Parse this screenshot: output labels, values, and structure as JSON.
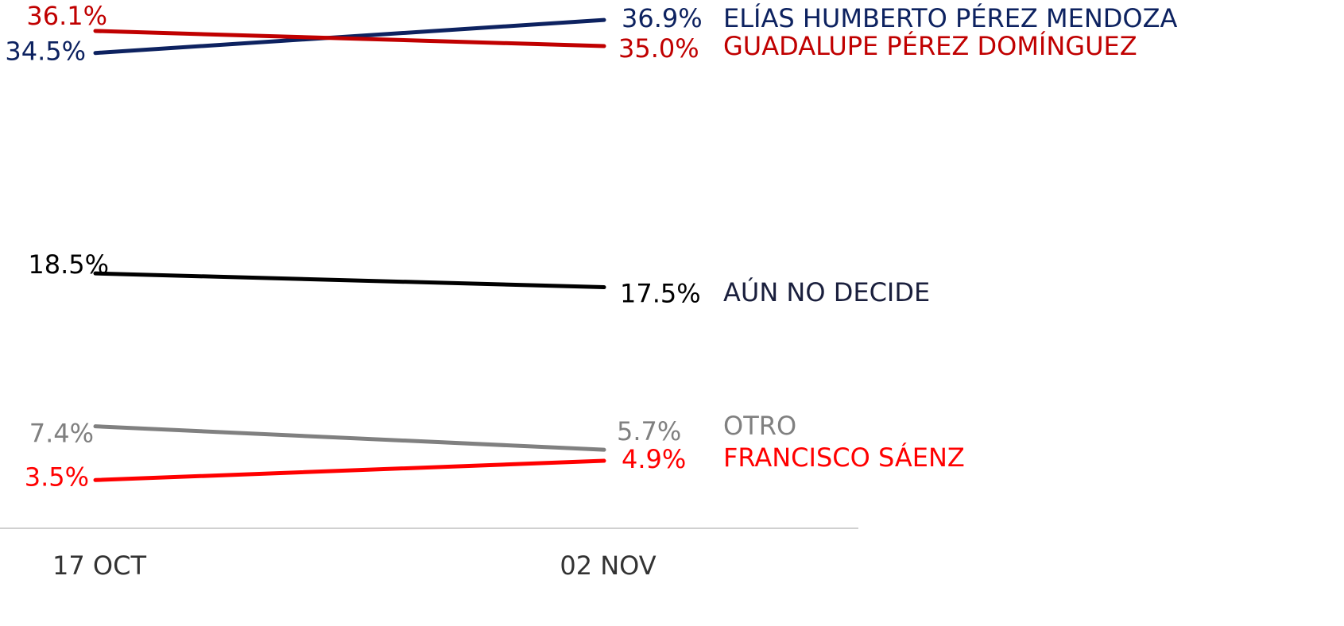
{
  "chart_data": {
    "type": "line",
    "categories": [
      "17 OCT",
      "02 NOV"
    ],
    "ylim": [
      0,
      38
    ],
    "series": [
      {
        "name": "ELÍAS HUMBERTO PÉREZ MENDOZA",
        "color": "#0d2260",
        "values": [
          34.5,
          36.9
        ],
        "value_labels": [
          "34.5%",
          "36.9%"
        ]
      },
      {
        "name": "GUADALUPE PÉREZ DOMÍNGUEZ",
        "color": "#c00000",
        "values": [
          36.1,
          35.0
        ],
        "value_labels": [
          "36.1%",
          "35.0%"
        ]
      },
      {
        "name": "AÚN NO DECIDE",
        "color": "#000000",
        "values": [
          18.5,
          17.5
        ],
        "value_labels": [
          "18.5%",
          "17.5%"
        ]
      },
      {
        "name": "OTRO",
        "color": "#808080",
        "values": [
          7.4,
          5.7
        ],
        "value_labels": [
          "7.4%",
          "5.7%"
        ]
      },
      {
        "name": "FRANCISCO SÁENZ",
        "color": "#ff0000",
        "values": [
          3.5,
          4.9
        ],
        "value_labels": [
          "3.5%",
          "4.9%"
        ]
      }
    ]
  }
}
